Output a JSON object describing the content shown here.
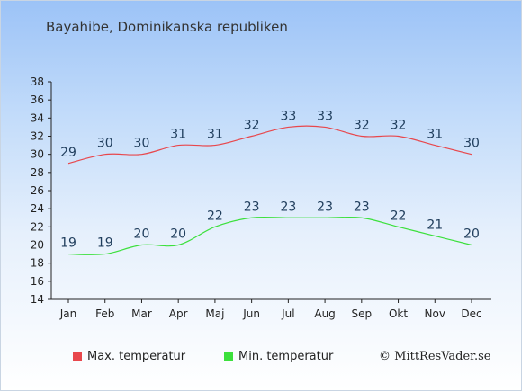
{
  "title": "Bayahibe, Dominikanska republiken",
  "credit": "© MittResVader.se",
  "colors": {
    "max": "#e8474c",
    "min": "#3ce03c",
    "label": "#1f3d5c"
  },
  "chart_data": {
    "type": "line",
    "title": "Bayahibe, Dominikanska republiken",
    "xlabel": "",
    "ylabel": "",
    "categories": [
      "Jan",
      "Feb",
      "Mar",
      "Apr",
      "Maj",
      "Jun",
      "Jul",
      "Aug",
      "Sep",
      "Okt",
      "Nov",
      "Dec"
    ],
    "ylim": [
      14,
      38
    ],
    "yticks": [
      14,
      16,
      18,
      20,
      22,
      24,
      26,
      28,
      30,
      32,
      34,
      36,
      38
    ],
    "grid": false,
    "legend_position": "bottom",
    "series": [
      {
        "name": "Max. temperatur",
        "color": "#e8474c",
        "values": [
          29,
          30,
          30,
          31,
          31,
          32,
          33,
          33,
          32,
          32,
          31,
          30
        ]
      },
      {
        "name": "Min. temperatur",
        "color": "#3ce03c",
        "values": [
          19,
          19,
          20,
          20,
          22,
          23,
          23,
          23,
          23,
          22,
          21,
          20
        ]
      }
    ]
  }
}
